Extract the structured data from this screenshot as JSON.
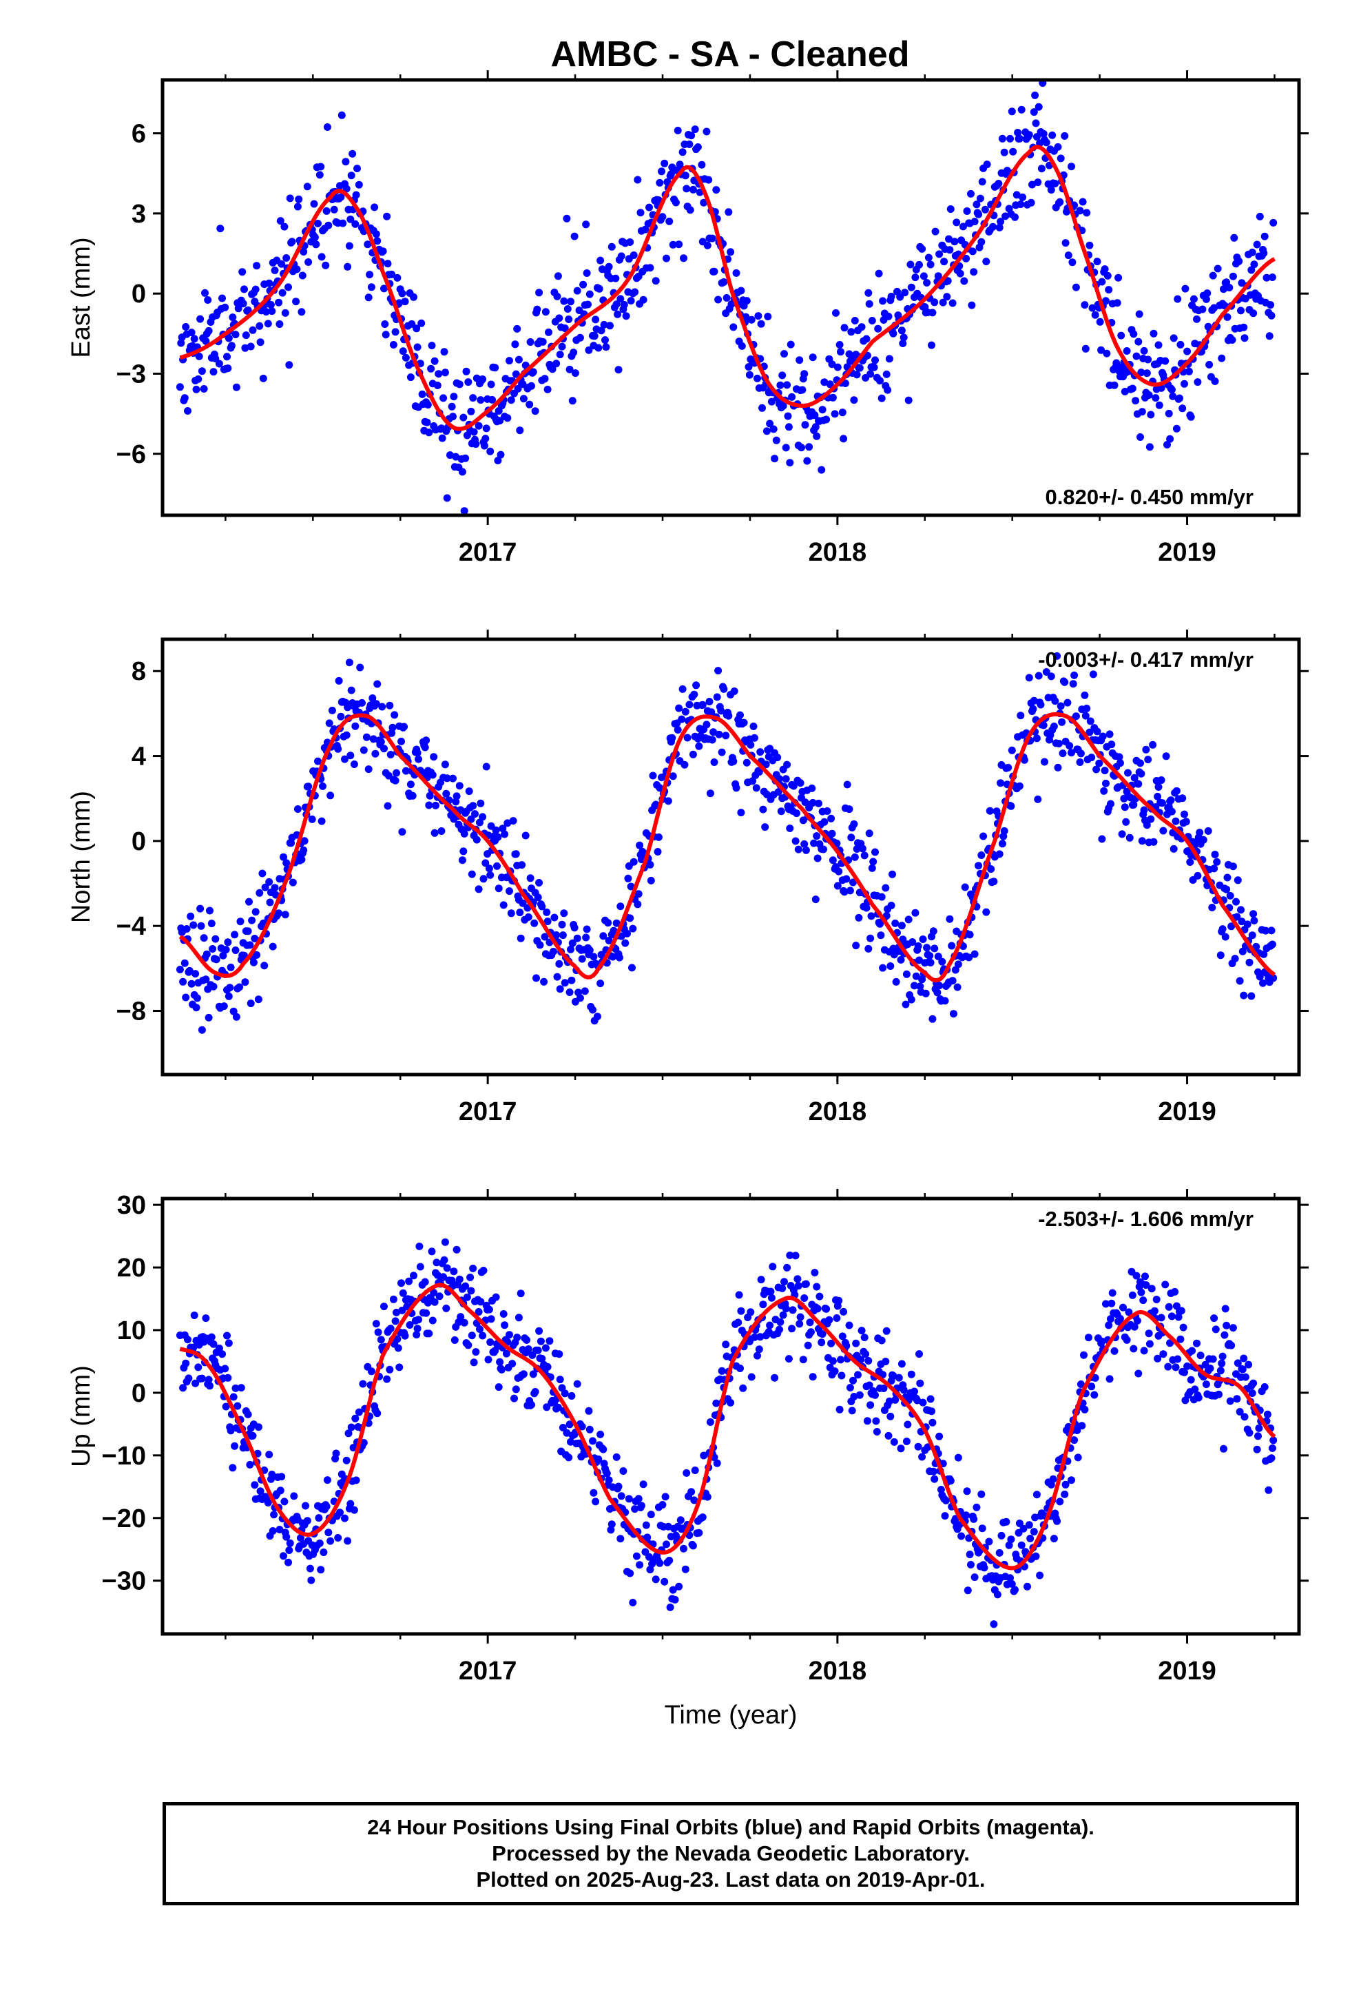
{
  "chart_data": {
    "type": "scatter",
    "title": "AMBC  - SA - Cleaned",
    "xlabel": "Time (year)",
    "xlim": [
      2016.07,
      2019.32
    ],
    "xticks": [
      2017,
      2018,
      2019
    ],
    "minor_ticks": [
      2016.25,
      2016.5,
      2016.75,
      2017.25,
      2017.5,
      2017.75,
      2018.25,
      2018.5,
      2018.75,
      2019.25
    ],
    "colors": {
      "data": "#0000ff",
      "fit": "#ff0000",
      "frame": "#000000"
    },
    "panels": [
      {
        "ylabel": "East (mm)",
        "ylim": [
          -8.3,
          8.0
        ],
        "yticks": [
          -6,
          -3,
          0,
          3,
          6
        ],
        "rate": "0.820+/- 0.450 mm/yr",
        "rate_position": "bottom-right",
        "fit": {
          "x": [
            2016.12,
            2016.25,
            2016.4,
            2016.55,
            2016.62,
            2016.7,
            2016.8,
            2016.9,
            2017.0,
            2017.1,
            2017.25,
            2017.4,
            2017.55,
            2017.62,
            2017.7,
            2017.8,
            2017.9,
            2018.0,
            2018.1,
            2018.25,
            2018.4,
            2018.55,
            2018.62,
            2018.7,
            2018.8,
            2018.9,
            2019.0,
            2019.1,
            2019.25
          ],
          "y": [
            -2.4,
            -1.5,
            0.3,
            3.6,
            3.3,
            0.8,
            -2.8,
            -5.0,
            -4.4,
            -3.0,
            -1.2,
            0.5,
            4.5,
            3.8,
            0.0,
            -3.3,
            -4.2,
            -3.4,
            -1.8,
            -0.2,
            2.2,
            5.3,
            4.8,
            1.8,
            -2.0,
            -3.4,
            -2.6,
            -0.8,
            1.3
          ]
        },
        "scatter_sd": 1.15,
        "seed": 11
      },
      {
        "ylabel": "North (mm)",
        "ylim": [
          -11.0,
          9.5
        ],
        "yticks": [
          -8,
          -4,
          0,
          4,
          8
        ],
        "rate": "-0.003+/- 0.417 mm/yr",
        "rate_position": "top-right",
        "fit": {
          "x": [
            2016.12,
            2016.22,
            2016.3,
            2016.42,
            2016.55,
            2016.65,
            2016.75,
            2016.9,
            2017.0,
            2017.1,
            2017.25,
            2017.32,
            2017.45,
            2017.55,
            2017.65,
            2017.75,
            2017.9,
            2018.0,
            2018.1,
            2018.25,
            2018.32,
            2018.45,
            2018.55,
            2018.65,
            2018.75,
            2018.9,
            2019.0,
            2019.1,
            2019.25
          ],
          "y": [
            -4.5,
            -6.2,
            -5.8,
            -2.0,
            4.5,
            5.9,
            4.0,
            1.5,
            0.0,
            -2.5,
            -5.9,
            -5.9,
            -1.0,
            4.8,
            5.8,
            4.0,
            1.5,
            -0.5,
            -3.0,
            -6.2,
            -5.8,
            0.0,
            5.0,
            5.9,
            4.0,
            1.5,
            0.0,
            -3.0,
            -6.3
          ]
        },
        "scatter_sd": 1.2,
        "seed": 23
      },
      {
        "ylabel": "Up (mm)",
        "ylim": [
          -38.5,
          31.0
        ],
        "yticks": [
          -30,
          -20,
          -10,
          0,
          10,
          20,
          30
        ],
        "rate": "-2.503+/- 1.606 mm/yr",
        "rate_position": "top-right",
        "fit": {
          "x": [
            2016.12,
            2016.2,
            2016.3,
            2016.4,
            2016.5,
            2016.6,
            2016.7,
            2016.85,
            2016.95,
            2017.05,
            2017.15,
            2017.25,
            2017.35,
            2017.5,
            2017.6,
            2017.7,
            2017.85,
            2017.95,
            2018.05,
            2018.15,
            2018.25,
            2018.35,
            2018.5,
            2018.6,
            2018.7,
            2018.85,
            2018.95,
            2019.05,
            2019.15,
            2019.25
          ],
          "y": [
            7.0,
            4.5,
            -6.0,
            -18.5,
            -22.5,
            -14.0,
            6.0,
            17.0,
            13.0,
            7.5,
            3.5,
            -5.0,
            -17.0,
            -25.5,
            -18.0,
            5.0,
            15.0,
            11.0,
            5.0,
            1.0,
            -6.0,
            -20.0,
            -28.0,
            -20.0,
            0.0,
            12.5,
            9.0,
            3.0,
            1.0,
            -7.0
          ]
        },
        "scatter_sd": 4.0,
        "seed": 37
      }
    ]
  },
  "footer": {
    "line1": "24 Hour Positions Using Final Orbits (blue) and Rapid Orbits (magenta).",
    "line2": "Processed by the Nevada Geodetic Laboratory.",
    "line3": "Plotted on 2025-Aug-23. Last data on 2019-Apr-01."
  }
}
